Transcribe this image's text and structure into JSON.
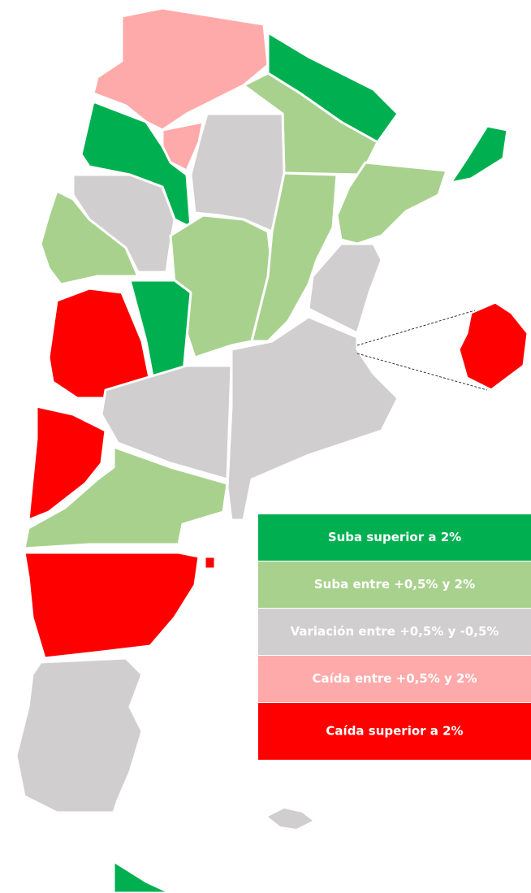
{
  "legend": {
    "items": [
      {
        "label": "Suba superior a 2%",
        "color": "#00b050"
      },
      {
        "label": "Suba entre +0,5% y 2%",
        "color": "#a9d18e"
      },
      {
        "label": "Variación entre +0,5% y -0,5%",
        "color": "#d0cece"
      },
      {
        "label": "Caída entre +0,5% y 2%",
        "color": "#ffaaaa"
      },
      {
        "label": "Caída superior a 2%",
        "color": "#ff0000"
      }
    ]
  }
}
